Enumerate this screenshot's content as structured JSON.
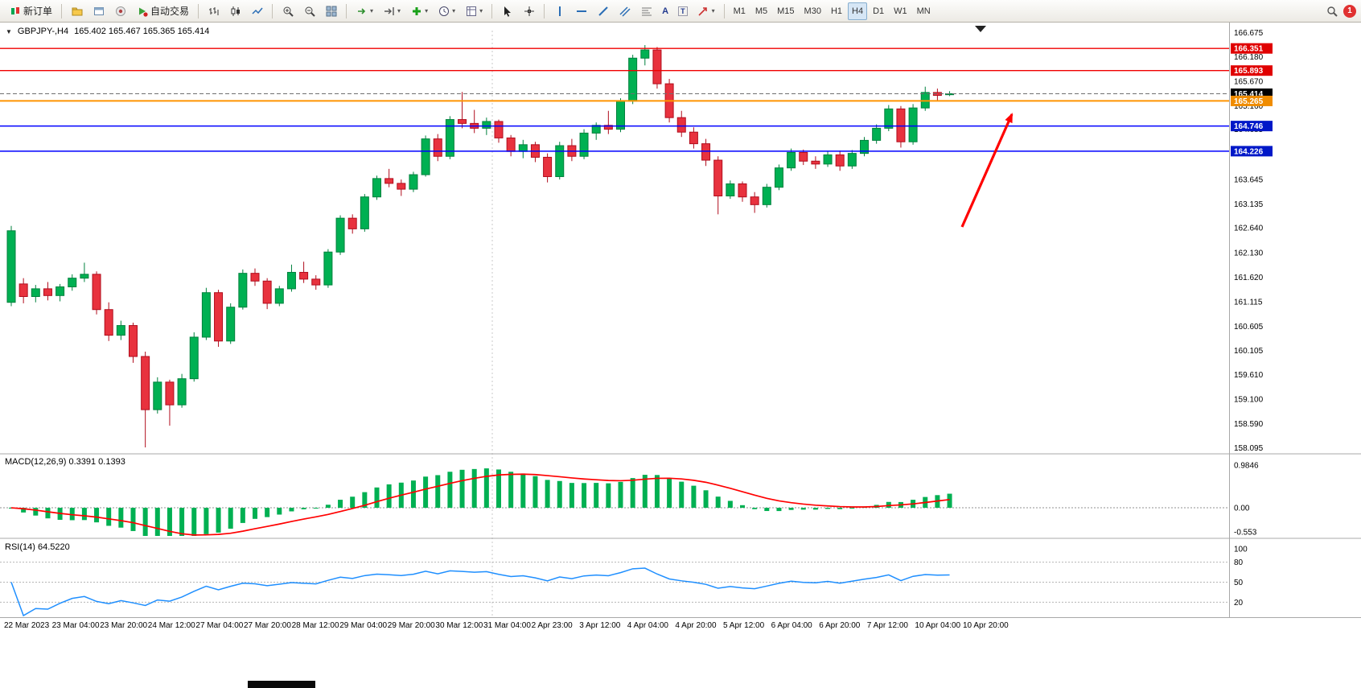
{
  "toolbar": {
    "new_order_label": "新订单",
    "auto_trading_label": "自动交易",
    "timeframes": [
      "M1",
      "M5",
      "M15",
      "M30",
      "H1",
      "H4",
      "D1",
      "W1",
      "MN"
    ],
    "active_timeframe": "H4",
    "notification_count": "1",
    "icons": [
      "new-order-icon",
      "profiles-icon",
      "charts-icon",
      "community-icon",
      "auto-trading-icon",
      "bar-chart-icon",
      "candlestick-chart-icon",
      "line-chart-icon",
      "zoom-in-icon",
      "zoom-out-icon",
      "tile-windows-icon",
      "autoscroll-icon",
      "chart-shift-icon",
      "indicators-icon",
      "periods-icon",
      "templates-icon",
      "cursor-icon",
      "crosshair-icon",
      "vertical-line-icon",
      "horizontal-line-icon",
      "trendline-icon",
      "channel-icon",
      "fibonacci-icon",
      "text-icon",
      "label-icon",
      "arrow-tool-icon",
      "search-icon"
    ]
  },
  "chart": {
    "collapse_icon": "▼",
    "symbol_period": "GBPJPY-,H4",
    "ohlc": "165.402 165.467 165.365 165.414",
    "macd_label": "MACD(12,26,9)",
    "macd_values": "0.3391 0.1393",
    "rsi_label": "RSI(14)",
    "rsi_value": "64.5220"
  },
  "chart_data": {
    "type": "candlestick",
    "symbol": "GBPJPY-",
    "timeframe": "H4",
    "title": "GBPJPY-,H4",
    "ohlc_display": [
      165.402,
      165.467,
      165.365,
      165.414
    ],
    "scale_max": 166.72,
    "scale_min": 158.0,
    "price_ticks": [
      166.675,
      166.18,
      165.67,
      165.16,
      164.685,
      164.195,
      163.645,
      163.135,
      162.64,
      162.13,
      161.62,
      161.115,
      160.605,
      160.105,
      159.61,
      159.1,
      158.59,
      158.095
    ],
    "colors": {
      "up": "#00b052",
      "up_border": "#00813d",
      "down": "#e8323e",
      "down_border": "#b00d1d",
      "bg": "#ffffff"
    },
    "candles": [
      [
        161.1,
        162.68,
        161.02,
        162.58
      ],
      [
        161.48,
        161.6,
        161.08,
        161.22
      ],
      [
        161.22,
        161.46,
        161.1,
        161.38
      ],
      [
        161.38,
        161.52,
        161.14,
        161.24
      ],
      [
        161.24,
        161.48,
        161.12,
        161.42
      ],
      [
        161.42,
        161.68,
        161.34,
        161.6
      ],
      [
        161.6,
        161.92,
        161.52,
        161.68
      ],
      [
        161.68,
        161.74,
        160.85,
        160.95
      ],
      [
        160.95,
        161.1,
        160.3,
        160.42
      ],
      [
        160.42,
        160.72,
        160.32,
        160.62
      ],
      [
        160.62,
        160.68,
        159.85,
        159.98
      ],
      [
        159.98,
        160.08,
        158.1,
        158.88
      ],
      [
        158.88,
        159.55,
        158.8,
        159.45
      ],
      [
        159.45,
        159.5,
        158.55,
        158.98
      ],
      [
        158.98,
        159.62,
        158.92,
        159.52
      ],
      [
        159.52,
        160.48,
        159.46,
        160.38
      ],
      [
        160.38,
        161.4,
        160.32,
        161.3
      ],
      [
        161.3,
        161.36,
        160.18,
        160.3
      ],
      [
        160.3,
        161.08,
        160.24,
        161.0
      ],
      [
        161.0,
        161.78,
        160.95,
        161.7
      ],
      [
        161.7,
        161.8,
        161.44,
        161.54
      ],
      [
        161.54,
        161.6,
        160.96,
        161.08
      ],
      [
        161.08,
        161.44,
        161.02,
        161.38
      ],
      [
        161.38,
        161.88,
        161.32,
        161.72
      ],
      [
        161.72,
        161.94,
        161.5,
        161.58
      ],
      [
        161.58,
        161.66,
        161.36,
        161.46
      ],
      [
        161.46,
        162.2,
        161.4,
        162.14
      ],
      [
        162.14,
        162.9,
        162.08,
        162.84
      ],
      [
        162.84,
        162.92,
        162.52,
        162.62
      ],
      [
        162.62,
        163.34,
        162.56,
        163.28
      ],
      [
        163.28,
        163.72,
        163.22,
        163.66
      ],
      [
        163.66,
        163.86,
        163.48,
        163.56
      ],
      [
        163.56,
        163.64,
        163.3,
        163.44
      ],
      [
        163.44,
        163.8,
        163.38,
        163.74
      ],
      [
        163.74,
        164.55,
        163.7,
        164.48
      ],
      [
        164.48,
        164.58,
        164.02,
        164.12
      ],
      [
        164.12,
        164.95,
        164.06,
        164.88
      ],
      [
        164.88,
        165.45,
        164.7,
        164.8
      ],
      [
        164.8,
        165.08,
        164.6,
        164.7
      ],
      [
        164.7,
        164.92,
        164.56,
        164.84
      ],
      [
        164.84,
        164.88,
        164.4,
        164.5
      ],
      [
        164.5,
        164.56,
        164.12,
        164.22
      ],
      [
        164.22,
        164.46,
        164.08,
        164.36
      ],
      [
        164.36,
        164.42,
        164.0,
        164.1
      ],
      [
        164.1,
        164.18,
        163.58,
        163.7
      ],
      [
        163.7,
        164.42,
        163.64,
        164.34
      ],
      [
        164.34,
        164.48,
        164.02,
        164.12
      ],
      [
        164.12,
        164.68,
        164.06,
        164.6
      ],
      [
        164.6,
        164.82,
        164.46,
        164.76
      ],
      [
        164.76,
        165.06,
        164.58,
        164.68
      ],
      [
        164.68,
        165.32,
        164.62,
        165.26
      ],
      [
        165.26,
        166.22,
        165.2,
        166.15
      ],
      [
        166.15,
        166.42,
        166.0,
        166.32
      ],
      [
        166.32,
        166.38,
        165.52,
        165.62
      ],
      [
        165.62,
        165.72,
        164.82,
        164.92
      ],
      [
        164.92,
        165.06,
        164.52,
        164.62
      ],
      [
        164.62,
        164.72,
        164.28,
        164.38
      ],
      [
        164.38,
        164.48,
        163.92,
        164.04
      ],
      [
        164.04,
        164.12,
        162.92,
        163.3
      ],
      [
        163.3,
        163.62,
        163.24,
        163.55
      ],
      [
        163.55,
        163.6,
        163.18,
        163.28
      ],
      [
        163.28,
        163.38,
        162.95,
        163.12
      ],
      [
        163.12,
        163.55,
        163.06,
        163.48
      ],
      [
        163.48,
        163.95,
        163.42,
        163.88
      ],
      [
        163.88,
        164.28,
        163.82,
        164.2
      ],
      [
        164.2,
        164.26,
        163.94,
        164.02
      ],
      [
        164.02,
        164.12,
        163.86,
        163.96
      ],
      [
        163.96,
        164.22,
        163.9,
        164.15
      ],
      [
        164.15,
        164.24,
        163.82,
        163.92
      ],
      [
        163.92,
        164.25,
        163.86,
        164.18
      ],
      [
        164.18,
        164.52,
        164.12,
        164.45
      ],
      [
        164.45,
        164.78,
        164.38,
        164.7
      ],
      [
        164.7,
        165.18,
        164.64,
        165.1
      ],
      [
        165.1,
        165.16,
        164.3,
        164.42
      ],
      [
        164.42,
        165.2,
        164.36,
        165.12
      ],
      [
        165.12,
        165.56,
        165.06,
        165.44
      ],
      [
        165.44,
        165.52,
        165.28,
        165.38
      ],
      [
        165.402,
        165.467,
        165.365,
        165.414
      ]
    ],
    "time_labels": [
      "22 Mar 2023",
      "23 Mar 04:00",
      "23 Mar 20:00",
      "24 Mar 12:00",
      "27 Mar 04:00",
      "27 Mar 20:00",
      "28 Mar 12:00",
      "29 Mar 04:00",
      "29 Mar 20:00",
      "30 Mar 12:00",
      "31 Mar 04:00",
      "2 Apr 23:00",
      "3 Apr 12:00",
      "4 Apr 04:00",
      "4 Apr 20:00",
      "5 Apr 12:00",
      "6 Apr 04:00",
      "6 Apr 20:00",
      "7 Apr 12:00",
      "10 Apr 04:00",
      "10 Apr 20:00"
    ],
    "horizontal_lines": [
      {
        "price": 166.351,
        "type": "resistance",
        "color": "#f00000",
        "box": "#e00000",
        "width": 1.4
      },
      {
        "price": 165.893,
        "type": "resistance",
        "color": "#f00000",
        "box": "#e00000",
        "width": 1.4
      },
      {
        "price": 165.414,
        "type": "bid",
        "color": "#707070",
        "box": "#000000",
        "width": 1,
        "dash": true
      },
      {
        "price": 165.265,
        "type": "level",
        "color": "#ff9400",
        "box": "#f08c00",
        "width": 2
      },
      {
        "price": 164.746,
        "type": "support",
        "color": "#0000ff",
        "box": "#0018c8",
        "width": 1.4
      },
      {
        "price": 164.226,
        "type": "support",
        "color": "#0000ff",
        "box": "#0018c8",
        "width": 1.4
      }
    ],
    "period_separator_x": 612,
    "indicators": [
      {
        "name": "MACD",
        "params": [
          12,
          26,
          9
        ],
        "values_text": "0.3391 0.1393",
        "scale_labels": [
          "0.9846",
          "0.00",
          "-0.553"
        ],
        "scale_values": [
          0.9846,
          0.0,
          -0.553
        ],
        "ylim": [
          -0.65,
          1.08
        ],
        "hist_color": "#00b052",
        "signal_color": "#ff0000"
      },
      {
        "name": "RSI",
        "params": [
          14
        ],
        "value_text": "64.5220",
        "levels": [
          80,
          50,
          20
        ],
        "scale_labels": [
          "100",
          "80",
          "50",
          "20"
        ],
        "scale_values": [
          100,
          80,
          50,
          20
        ],
        "ylim": [
          0,
          100
        ],
        "line_color": "#1f8fff"
      }
    ],
    "annotations": [
      {
        "type": "arrow",
        "from": [
          1196,
          282
        ],
        "to": [
          1258,
          142
        ],
        "color": "#ff0000",
        "width": 3.2
      }
    ]
  }
}
